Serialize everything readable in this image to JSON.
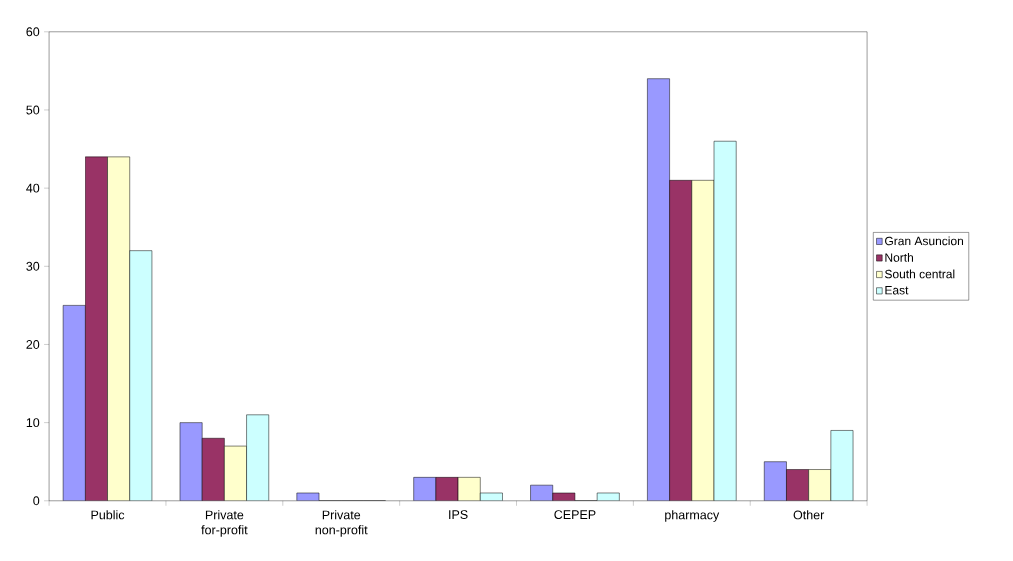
{
  "chart_data": {
    "type": "bar",
    "categories": [
      "Public",
      "Private for-profit",
      "Private non-profit",
      "IPS",
      "CEPEP",
      "pharmacy",
      "Other"
    ],
    "series": [
      {
        "name": "Gran Asuncion",
        "color": "#9999ff",
        "values": [
          25,
          10,
          1,
          3,
          2,
          54,
          5
        ]
      },
      {
        "name": "North",
        "color": "#993366",
        "values": [
          44,
          8,
          0,
          3,
          1,
          41,
          4
        ]
      },
      {
        "name": "South central",
        "color": "#ffffcc",
        "values": [
          44,
          7,
          0,
          3,
          0,
          41,
          4
        ]
      },
      {
        "name": "East",
        "color": "#ccffff",
        "values": [
          32,
          11,
          0,
          1,
          1,
          46,
          9
        ]
      }
    ],
    "ylim": [
      0,
      60
    ],
    "yticks": [
      0,
      10,
      20,
      30,
      40,
      50,
      60
    ],
    "grid": false,
    "legend": "right"
  }
}
